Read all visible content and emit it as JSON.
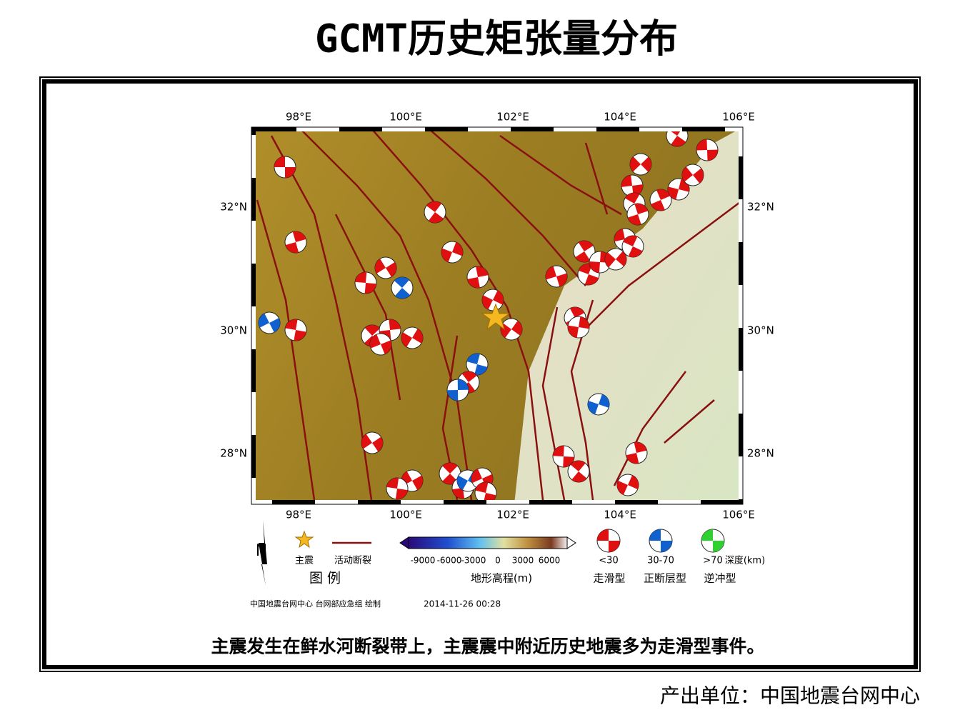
{
  "title": "GCMT历史矩张量分布",
  "map": {
    "lon_labels": [
      "98°E",
      "100°E",
      "102°E",
      "104°E",
      "106°E"
    ],
    "lat_labels": [
      "32°N",
      "30°N",
      "28°N"
    ]
  },
  "legend": {
    "heading": "图 例",
    "north": "N",
    "mainshock": "主震",
    "fault": "活动断裂",
    "colorbar_ticks": [
      "-9000",
      "-6000",
      "-3000",
      "0",
      "3000",
      "6000"
    ],
    "colorbar_title": "地形高程(m)",
    "depth_ranges": [
      "<30",
      "30-70",
      ">70"
    ],
    "depth_unit": "深度(km)",
    "mechanisms": [
      "走滑型",
      "正断层型",
      "逆冲型"
    ]
  },
  "credit": "中国地震台网中心 台网部应急组 绘制",
  "timestamp": "2014-11-26 00:28",
  "caption": "主震发生在鲜水河断裂带上，主震震中附近历史地震多为走滑型事件。",
  "footer": "产出单位：中国地震台网中心"
}
